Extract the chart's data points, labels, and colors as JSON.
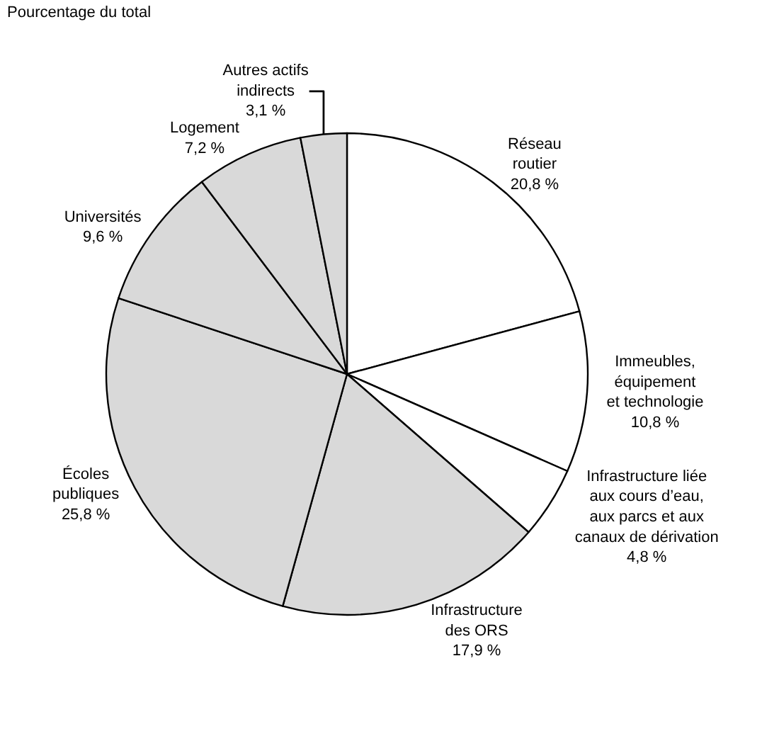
{
  "chart_data": {
    "type": "pie",
    "title": "Pourcentage du total",
    "categories": [
      "Réseau\nroutier",
      "Immeubles,\néquipement\net technologie",
      "Infrastructure liée\naux cours d’eau,\naux parcs et aux\ncanaux de dérivation",
      "Infrastructure\ndes ORS",
      "Écoles\npubliques",
      "Universités",
      "Logement",
      "Autres actifs\nindirects"
    ],
    "values": [
      20.8,
      10.8,
      4.8,
      17.9,
      25.8,
      9.6,
      7.2,
      3.1
    ],
    "value_labels": [
      "20,8 %",
      "10,8 %",
      "4,8 %",
      "17,9 %",
      "25,8 %",
      "9,6 %",
      "7,2 %",
      "3,1 %"
    ],
    "colors": [
      "#ffffff",
      "#ffffff",
      "#ffffff",
      "#d9d9d9",
      "#d9d9d9",
      "#d9d9d9",
      "#d9d9d9",
      "#d9d9d9"
    ],
    "legend": false
  }
}
